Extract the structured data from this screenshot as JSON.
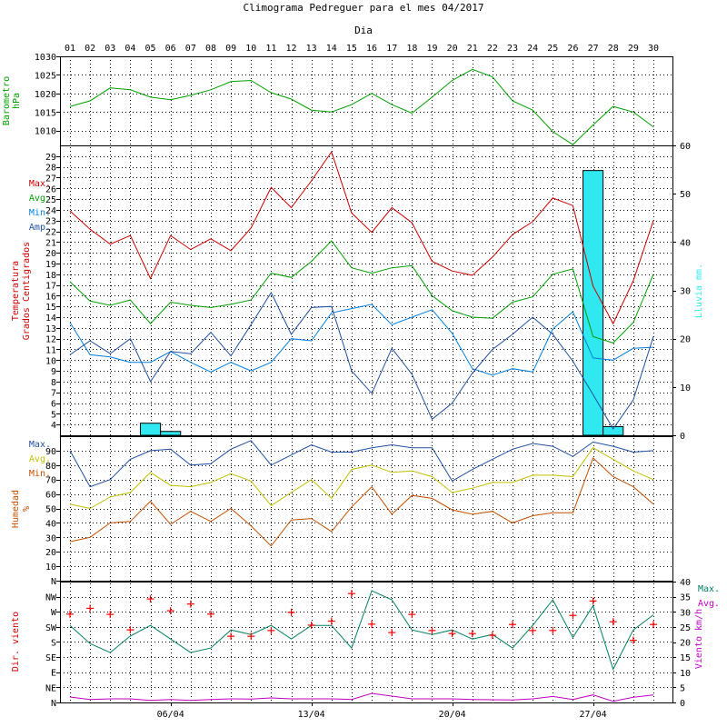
{
  "chart_data": {
    "type": "line",
    "title": "Climograma Pedreguer para el mes 04/2017",
    "xlabel": "Dia",
    "days": [
      "01",
      "02",
      "03",
      "04",
      "05",
      "06",
      "07",
      "08",
      "09",
      "10",
      "11",
      "12",
      "13",
      "14",
      "15",
      "16",
      "17",
      "18",
      "19",
      "20",
      "21",
      "22",
      "23",
      "24",
      "25",
      "26",
      "27",
      "28",
      "29",
      "30"
    ],
    "week_labels": [
      {
        "day": 6,
        "label": "06/04"
      },
      {
        "day": 13,
        "label": "13/04"
      },
      {
        "day": 20,
        "label": "20/04"
      },
      {
        "day": 27,
        "label": "27/04"
      }
    ],
    "colors": {
      "red": "#cc0000",
      "green": "#00a000",
      "blue": "#0080e0",
      "navy": "#2050a0",
      "olive": "#c0c000",
      "brown": "#c05000",
      "cyan": "#30e8f0",
      "teal": "#008060",
      "magenta": "#c000c0",
      "wind_dir": "#ff0000"
    },
    "pressure": {
      "ylabel": "Barometro",
      "unit": "hPa",
      "ylim": [
        1006,
        1030
      ],
      "ticks": [
        "1010",
        "1015",
        "1020",
        "1025",
        "1030"
      ],
      "values": [
        1016.5,
        1018,
        1021.5,
        1021,
        1019,
        1018.3,
        1019.5,
        1021,
        1023.2,
        1023.5,
        1020.2,
        1018.5,
        1015.5,
        1015,
        1017,
        1020,
        1017,
        1014.7,
        1019,
        1023.5,
        1026.5,
        1024.5,
        1018,
        1015.5,
        1009.7,
        1006.2,
        1011.5,
        1016.5,
        1015,
        1011
      ]
    },
    "temperature": {
      "ylabel": "Temperatura",
      "ylabel2": "Grados Centigrados",
      "ylim": [
        3,
        30
      ],
      "ticks": [
        "4",
        "5",
        "6",
        "7",
        "8",
        "9",
        "10",
        "11",
        "12",
        "13",
        "14",
        "15",
        "16",
        "17",
        "18",
        "19",
        "20",
        "21",
        "22",
        "23",
        "24",
        "25",
        "26",
        "27",
        "28",
        "29"
      ],
      "legend": [
        "Max.",
        "Avg.",
        "Min.",
        "Amp."
      ],
      "max": [
        23.9,
        22.2,
        20.8,
        21.6,
        17.6,
        21.6,
        20.3,
        21.3,
        20.2,
        22.3,
        26.1,
        24.2,
        26.7,
        29.4,
        23.7,
        21.9,
        24.2,
        22.8,
        19.2,
        18.3,
        17.9,
        19.6,
        21.7,
        22.9,
        25.1,
        24.4,
        16.9,
        13.4,
        17.4,
        23
      ],
      "avg": [
        17.3,
        15.5,
        15.1,
        15.6,
        13.4,
        15.4,
        15.1,
        14.9,
        15.2,
        15.6,
        18.1,
        17.7,
        19.2,
        21.1,
        18.6,
        18.1,
        18.6,
        18.8,
        16,
        14.6,
        14,
        13.9,
        15.4,
        15.9,
        18,
        18.5,
        12.2,
        11.6,
        13.5,
        18
      ],
      "min": [
        13.5,
        10.5,
        10.3,
        9.8,
        9.8,
        10.8,
        9.8,
        8.9,
        9.8,
        9,
        9.8,
        12,
        11.8,
        14.4,
        14.8,
        15.2,
        13.3,
        14,
        14.7,
        12.5,
        9.2,
        8.6,
        9.2,
        8.9,
        12.9,
        14.5,
        10.2,
        10,
        11.1,
        11.2
      ],
      "amp": [
        10.5,
        11.8,
        10.6,
        12,
        8,
        10.8,
        10.6,
        12.6,
        10.4,
        13.3,
        16.3,
        12.4,
        14.9,
        15,
        9,
        6.9,
        11.1,
        8.7,
        4.5,
        6,
        8.8,
        11,
        12.4,
        14,
        12.4,
        9.9,
        6.8,
        3.6,
        6.3,
        12.2
      ]
    },
    "rain": {
      "ylabel": "Lluvia mm.",
      "ylim": [
        0,
        60
      ],
      "ticks": [
        "0",
        "10",
        "20",
        "30",
        "40",
        "50",
        "60"
      ],
      "values": [
        0,
        0,
        0,
        0,
        2.5,
        0.8,
        0,
        0,
        0,
        0,
        0,
        0,
        0,
        0,
        0,
        0,
        0,
        0,
        0,
        0,
        0,
        0,
        0,
        0,
        0,
        0,
        54.8,
        1.8,
        0,
        0
      ]
    },
    "humidity": {
      "ylabel": "Humedad",
      "unit": "%",
      "ylim": [
        0,
        100
      ],
      "ticks": [
        "N",
        "10",
        "20",
        "30",
        "40",
        "50",
        "60",
        "70",
        "80",
        "90"
      ],
      "legend": [
        "Max.",
        "Avg.",
        "Min."
      ],
      "max": [
        90,
        65,
        70,
        84,
        90,
        91,
        80,
        81,
        91,
        97,
        80,
        87,
        94,
        89,
        89,
        92,
        94,
        92,
        92,
        69,
        77,
        84,
        91,
        95,
        93,
        86,
        96,
        93,
        89,
        90
      ],
      "avg": [
        53,
        50,
        58,
        61,
        75,
        66,
        65,
        68,
        74,
        69,
        52,
        61,
        70,
        57,
        77,
        80,
        75,
        76,
        72,
        61,
        64,
        68,
        68,
        73,
        73,
        72,
        92,
        84,
        76,
        70
      ],
      "min": [
        27,
        30,
        40,
        41,
        55,
        39,
        48,
        41,
        50,
        38,
        24,
        42,
        43,
        34,
        51,
        65,
        46,
        59,
        57,
        49,
        46,
        48,
        40,
        45,
        47,
        47,
        85,
        72,
        65,
        53
      ]
    },
    "wind_speed": {
      "ylabel": "Viento km/h",
      "ylim": [
        0,
        40
      ],
      "ticks": [
        "0",
        "5",
        "10",
        "15",
        "20",
        "25",
        "30",
        "35",
        "40"
      ],
      "legend": [
        "Max.",
        "Avg."
      ],
      "max": [
        25.5,
        19.5,
        16.5,
        22,
        25.5,
        21,
        16.5,
        18,
        24,
        22.5,
        25.5,
        21,
        25.5,
        25.5,
        18,
        37,
        34,
        24,
        22.5,
        24,
        21,
        22.5,
        18,
        25.5,
        34,
        21.5,
        32,
        11,
        24,
        29
      ],
      "avg": [
        1.8,
        1,
        1.2,
        1.2,
        0.7,
        1,
        0.7,
        1,
        1.2,
        1.1,
        1.5,
        1.2,
        1.2,
        1.2,
        1,
        3,
        2.1,
        1.2,
        1.2,
        1.2,
        1,
        0.9,
        0.8,
        1.2,
        2,
        1,
        2.5,
        0.4,
        1.7,
        2.5
      ]
    },
    "wind_dir": {
      "ylabel": "Dir. viento",
      "ticks": [
        "N",
        "NE",
        "E",
        "SE",
        "S",
        "SW",
        "W",
        "NW"
      ],
      "values_deg": [
        263,
        280,
        262,
        216,
        308,
        273,
        293,
        263,
        197,
        197,
        214,
        268,
        230,
        242,
        324,
        233,
        208,
        262,
        214,
        205,
        205,
        200,
        232,
        214,
        214,
        259,
        302,
        240,
        185,
        232
      ]
    }
  }
}
